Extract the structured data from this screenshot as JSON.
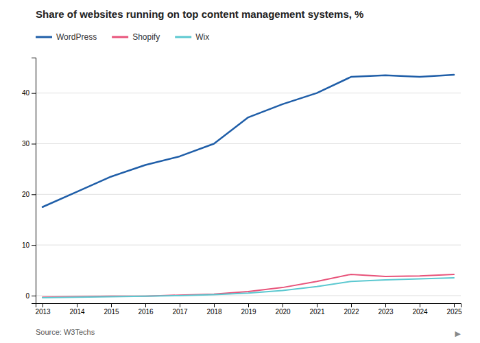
{
  "chart_data": {
    "type": "line",
    "title": "Share of websites running on top content management systems, %",
    "source": "Source: W3Techs",
    "annotations": [
      "▶"
    ],
    "x": [
      2013,
      2014,
      2015,
      2016,
      2017,
      2018,
      2019,
      2020,
      2021,
      2022,
      2023,
      2024,
      2025
    ],
    "series": [
      {
        "name": "WordPress",
        "color": "#1f5ea8",
        "values": [
          17.5,
          20.5,
          23.5,
          25.8,
          27.5,
          30.0,
          35.2,
          37.8,
          40.0,
          43.2,
          43.5,
          43.2,
          43.6
        ]
      },
      {
        "name": "Shopify",
        "color": "#e8537a",
        "values": [
          -0.3,
          -0.2,
          -0.1,
          -0.1,
          0.1,
          0.3,
          0.8,
          1.6,
          2.8,
          4.2,
          3.8,
          3.9,
          4.2
        ]
      },
      {
        "name": "Wix",
        "color": "#5bc8d0",
        "values": [
          -0.4,
          -0.3,
          -0.2,
          -0.1,
          0.0,
          0.2,
          0.5,
          1.0,
          1.8,
          2.8,
          3.1,
          3.3,
          3.5
        ]
      }
    ],
    "xlim": [
      2012.8,
      2025.2
    ],
    "xticks": [
      2013,
      2014,
      2015,
      2016,
      2017,
      2018,
      2019,
      2020,
      2021,
      2022,
      2023,
      2024,
      2025
    ],
    "ylim": [
      -1.5,
      47
    ],
    "yticks": [
      0,
      10,
      20,
      30,
      40
    ],
    "grid": true,
    "legend": "top-left"
  }
}
